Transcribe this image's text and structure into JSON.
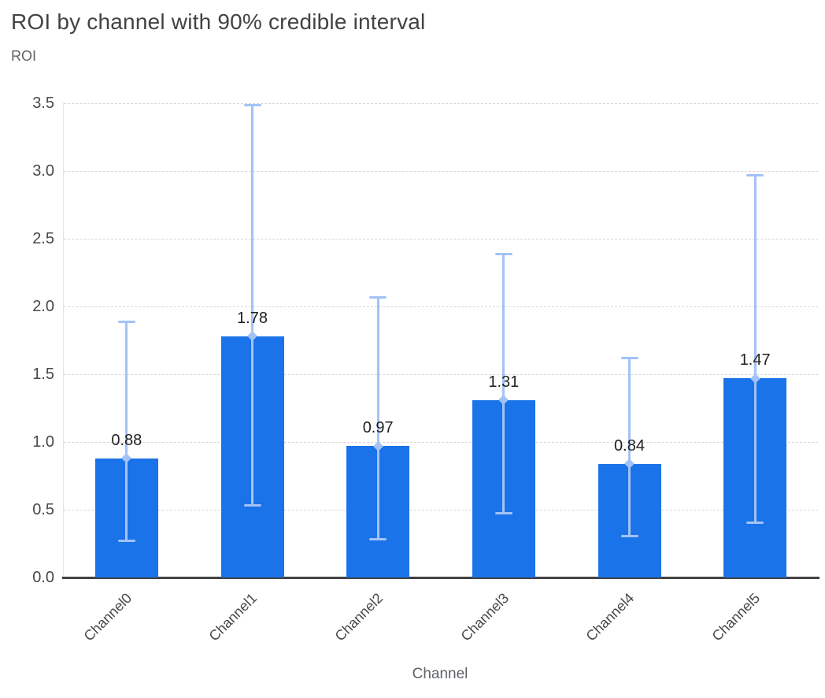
{
  "chart_data": {
    "type": "bar",
    "title": "ROI by channel with 90% credible interval",
    "xlabel": "Channel",
    "ylabel": "ROI",
    "categories": [
      "Channel0",
      "Channel1",
      "Channel2",
      "Channel3",
      "Channel4",
      "Channel5"
    ],
    "values": [
      0.88,
      1.78,
      0.97,
      1.31,
      0.84,
      1.47
    ],
    "value_labels": [
      "0.88",
      "1.78",
      "0.97",
      "1.31",
      "0.84",
      "1.47"
    ],
    "error_low": [
      0.27,
      0.53,
      0.28,
      0.47,
      0.3,
      0.4
    ],
    "error_high": [
      1.89,
      3.49,
      2.07,
      2.39,
      1.62,
      2.97
    ],
    "ylim": [
      0,
      3.5
    ],
    "ytick_step": 0.5,
    "yticks": [
      "0.0",
      "0.5",
      "1.0",
      "1.5",
      "2.0",
      "2.5",
      "3.0",
      "3.5"
    ],
    "grid": true,
    "legend": "none",
    "colors": {
      "bar": "#1a73e8",
      "error_bar": "#a3c2f7",
      "title_text": "#434343",
      "tick_text": "#47494c",
      "axis_title_text": "#5f6368",
      "value_text": "#1f1f1f",
      "gridline": "#d8d8d8",
      "axis_line": "#424242"
    }
  }
}
